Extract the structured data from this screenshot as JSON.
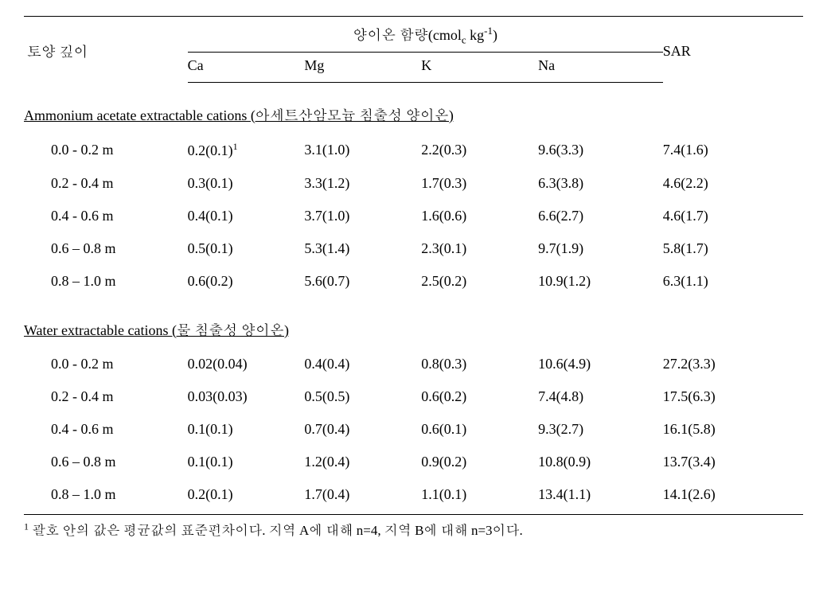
{
  "type": "table",
  "background_color": "#ffffff",
  "text_color": "#000000",
  "border_color": "#000000",
  "font_family": "Times New Roman / Batang serif",
  "base_fontsize": 18,
  "footnote_fontsize": 17,
  "border_width_major": 1.5,
  "border_width_minor": 1,
  "headers": {
    "soil_depth": "토양 깊이",
    "cation_content_label": "양이온 함량(cmol",
    "cation_content_sub": "c",
    "cation_content_unit": " kg",
    "cation_content_sup": "-1",
    "cation_content_close": ")",
    "ca": "Ca",
    "mg": "Mg",
    "k": "K",
    "na": "Na",
    "sar": "SAR"
  },
  "columns": [
    "토양 깊이",
    "Ca",
    "Mg",
    "K",
    "Na",
    "SAR"
  ],
  "column_widths_pct": [
    21,
    15,
    15,
    15,
    16,
    18
  ],
  "sections": [
    {
      "title": "Ammonium acetate extractable cations (아세트산암모늄 침출성 양이온)",
      "rows": [
        {
          "depth": "0.0 - 0.2 m",
          "ca": "0.2(0.1)",
          "ca_sup": "1",
          "mg": "3.1(1.0)",
          "k": "2.2(0.3)",
          "na": "9.6(3.3)",
          "sar": "7.4(1.6)"
        },
        {
          "depth": "0.2 - 0.4 m",
          "ca": "0.3(0.1)",
          "mg": "3.3(1.2)",
          "k": "1.7(0.3)",
          "na": "6.3(3.8)",
          "sar": "4.6(2.2)"
        },
        {
          "depth": "0.4 - 0.6 m",
          "ca": "0.4(0.1)",
          "mg": "3.7(1.0)",
          "k": "1.6(0.6)",
          "na": "6.6(2.7)",
          "sar": "4.6(1.7)"
        },
        {
          "depth": "0.6 – 0.8 m",
          "ca": "0.5(0.1)",
          "mg": "5.3(1.4)",
          "k": "2.3(0.1)",
          "na": "9.7(1.9)",
          "sar": "5.8(1.7)"
        },
        {
          "depth": "0.8 – 1.0 m",
          "ca": "0.6(0.2)",
          "mg": "5.6(0.7)",
          "k": "2.5(0.2)",
          "na": "10.9(1.2)",
          "sar": "6.3(1.1)"
        }
      ]
    },
    {
      "title": "Water extractable cations (물 침출성 양이온)",
      "rows": [
        {
          "depth": "0.0 - 0.2 m",
          "ca": "0.02(0.04)",
          "mg": "0.4(0.4)",
          "k": "0.8(0.3)",
          "na": "10.6(4.9)",
          "sar": "27.2(3.3)"
        },
        {
          "depth": "0.2 - 0.4 m",
          "ca": "0.03(0.03)",
          "mg": "0.5(0.5)",
          "k": "0.6(0.2)",
          "na": "7.4(4.8)",
          "sar": "17.5(6.3)"
        },
        {
          "depth": "0.4 - 0.6 m",
          "ca": "0.1(0.1)",
          "mg": "0.7(0.4)",
          "k": "0.6(0.1)",
          "na": "9.3(2.7)",
          "sar": "16.1(5.8)"
        },
        {
          "depth": "0.6 – 0.8 m",
          "ca": "0.1(0.1)",
          "mg": "1.2(0.4)",
          "k": "0.9(0.2)",
          "na": "10.8(0.9)",
          "sar": "13.7(3.4)"
        },
        {
          "depth": "0.8 – 1.0 m",
          "ca": "0.2(0.1)",
          "mg": "1.7(0.4)",
          "k": "1.1(0.1)",
          "na": "13.4(1.1)",
          "sar": "14.1(2.6)"
        }
      ]
    }
  ],
  "footnote": {
    "marker": "1",
    "text": " 괄호 안의 값은 평균값의 표준편차이다. 지역 A에 대해 n=4, 지역 B에 대해 n=3이다."
  }
}
